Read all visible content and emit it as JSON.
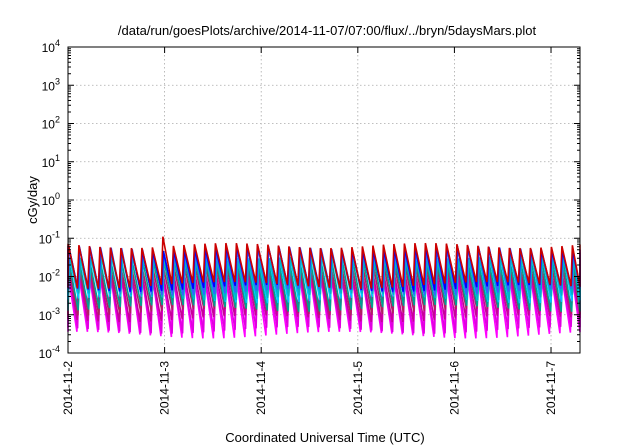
{
  "chart_data": {
    "type": "line",
    "title": "/data/run/goesPlots/archive/2014-11-07/07:00/flux/../bryn/5daysMars.plot",
    "xlabel": "Coordinated Universal Time (UTC)",
    "ylabel": "cGy/day",
    "x_start": "2014-11-02",
    "x_end_days": 5.3,
    "xlim_days": [
      0,
      5.3
    ],
    "x_ticks": [
      {
        "label": "2014-11-2",
        "day": 0
      },
      {
        "label": "2014-11-3",
        "day": 1
      },
      {
        "label": "2014-11-4",
        "day": 2
      },
      {
        "label": "2014-11-5",
        "day": 3
      },
      {
        "label": "2014-11-6",
        "day": 4
      },
      {
        "label": "2014-11-7",
        "day": 5
      }
    ],
    "y_scale": "log",
    "ylim": [
      0.0001,
      10000
    ],
    "y_ticks": [
      {
        "base": "10",
        "exp": "-4",
        "value": 0.0001
      },
      {
        "base": "10",
        "exp": "-3",
        "value": 0.001
      },
      {
        "base": "10",
        "exp": "-2",
        "value": 0.01
      },
      {
        "base": "10",
        "exp": "-1",
        "value": 0.1
      },
      {
        "base": "10",
        "exp": "0",
        "value": 1
      },
      {
        "base": "10",
        "exp": "1",
        "value": 10
      },
      {
        "base": "10",
        "exp": "2",
        "value": 100
      },
      {
        "base": "10",
        "exp": "3",
        "value": 1000
      },
      {
        "base": "10",
        "exp": "4",
        "value": 10000
      }
    ],
    "grid": true,
    "cycles_per_day": 9.2,
    "series": [
      {
        "color": "#ff00ff",
        "peak": 0.012,
        "trough": 0.0003,
        "phase": 0.0
      },
      {
        "color": "#e000e0",
        "peak": 0.01,
        "trough": 0.0004,
        "phase": 0.06
      },
      {
        "color": "#c8009a",
        "peak": 0.015,
        "trough": 0.0008,
        "phase": 0.03
      },
      {
        "color": "#b02060",
        "peak": 0.018,
        "trough": 0.0012,
        "phase": 0.09
      },
      {
        "color": "#00a090",
        "peak": 0.025,
        "trough": 0.0015,
        "phase": 0.12
      },
      {
        "color": "#00c8ff",
        "peak": 0.035,
        "trough": 0.0025,
        "phase": 0.15
      },
      {
        "color": "#00b4c8",
        "peak": 0.03,
        "trough": 0.003,
        "phase": 0.18
      },
      {
        "color": "#3264ff",
        "peak": 0.05,
        "trough": 0.004,
        "phase": 0.1
      },
      {
        "color": "#0000ff",
        "peak": 0.055,
        "trough": 0.005,
        "phase": 0.07
      },
      {
        "color": "#cc0000",
        "peak": 0.065,
        "trough": 0.006,
        "phase": 0.04
      }
    ],
    "spike": {
      "day": 1.0,
      "value": 0.11
    }
  }
}
